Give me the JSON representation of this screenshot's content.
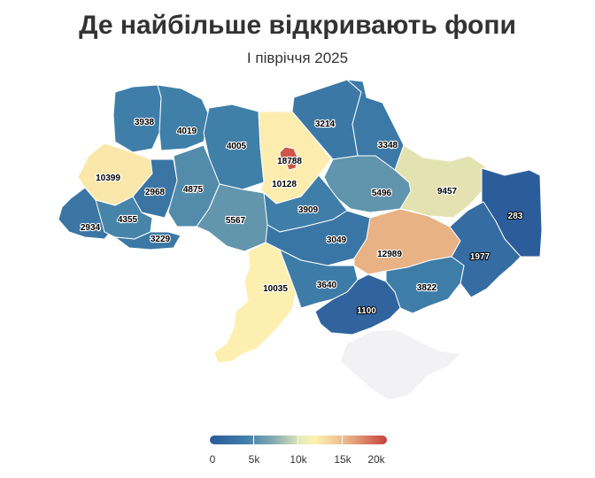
{
  "title": "Де найбільше відкривають фопи",
  "subtitle": "І півріччя 2025",
  "legend": {
    "ticks": [
      "0",
      "5k",
      "10k",
      "15k",
      "20k"
    ],
    "min": 0,
    "max": 20000
  },
  "colors": {
    "low": "#2b5a9a",
    "mid": "#fdf0b0",
    "high": "#c8413e",
    "no_data": "#f2f2f5"
  },
  "regions": [
    {
      "name": "Волинська",
      "value": 3938
    },
    {
      "name": "Рівненська",
      "value": 4019
    },
    {
      "name": "Житомирська",
      "value": 4005
    },
    {
      "name": "Київська",
      "value": 10128
    },
    {
      "name": "м. Київ",
      "value": 18788
    },
    {
      "name": "Чернігівська",
      "value": 3214
    },
    {
      "name": "Сумська",
      "value": 3348
    },
    {
      "name": "Львівська",
      "value": 10399
    },
    {
      "name": "Тернопільська",
      "value": 2968
    },
    {
      "name": "Хмельницька",
      "value": 4875
    },
    {
      "name": "Полтавська",
      "value": 5496
    },
    {
      "name": "Харківська",
      "value": 9457
    },
    {
      "name": "Луганська",
      "value": 283
    },
    {
      "name": "Закарпатська",
      "value": 2934
    },
    {
      "name": "Івано-Франківська",
      "value": 4355
    },
    {
      "name": "Чернівецька",
      "value": 3229
    },
    {
      "name": "Вінницька",
      "value": 5567
    },
    {
      "name": "Черкаська",
      "value": 3909
    },
    {
      "name": "Кіровоградська",
      "value": 3049
    },
    {
      "name": "Дніпропетровська",
      "value": 12989
    },
    {
      "name": "Донецька",
      "value": 1977
    },
    {
      "name": "Одеська",
      "value": 10035
    },
    {
      "name": "Миколаївська",
      "value": 3640
    },
    {
      "name": "Запорізька",
      "value": 3822
    },
    {
      "name": "Херсонська",
      "value": 1100
    },
    {
      "name": "АР Крим",
      "value": null
    }
  ]
}
